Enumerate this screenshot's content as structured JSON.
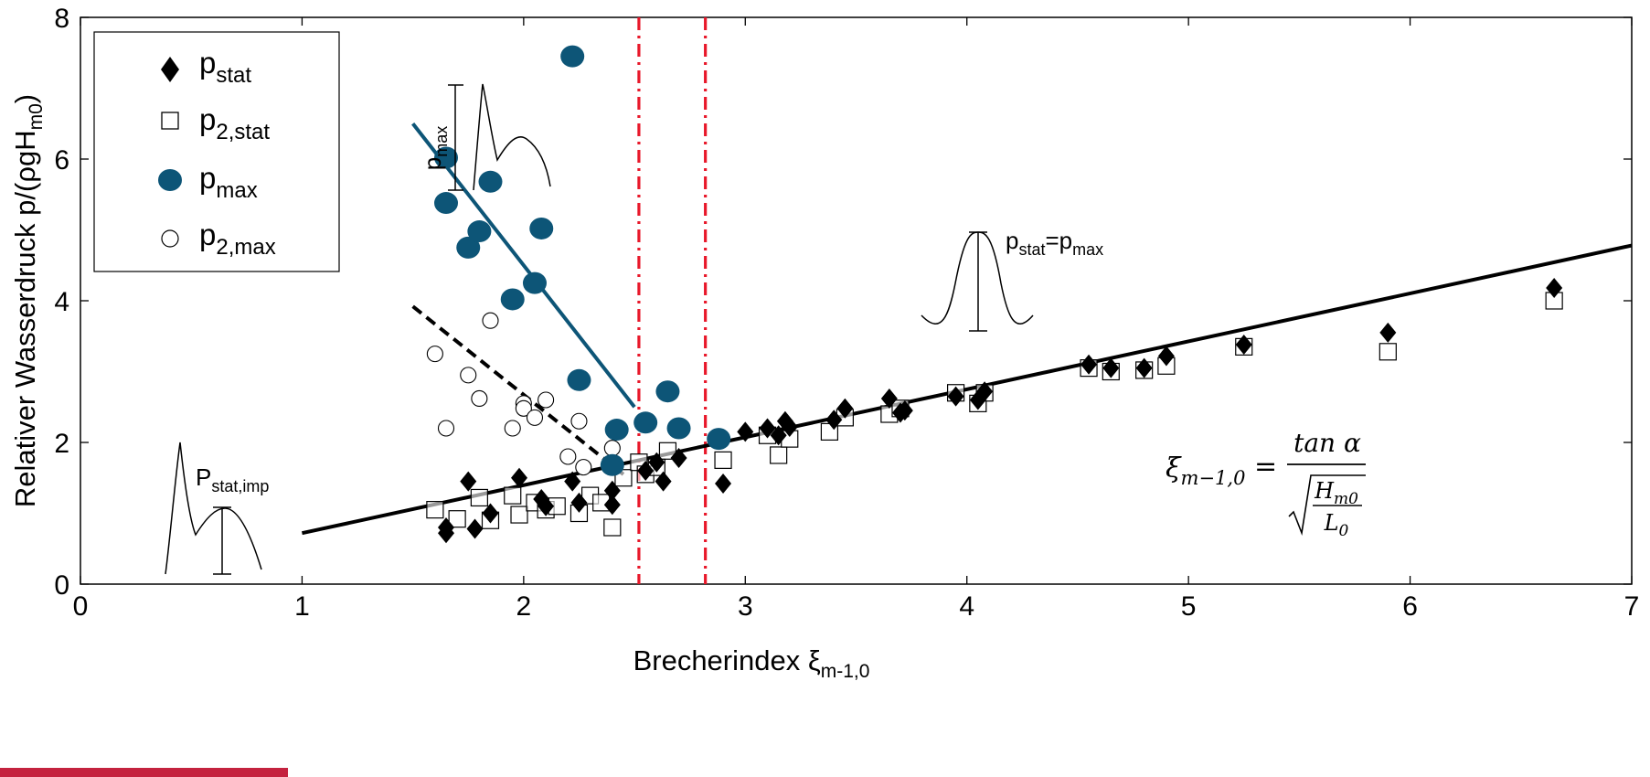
{
  "colors": {
    "accent_blue": "#0d5577",
    "red_dashed": "#e8182a",
    "black": "#000000",
    "logo_red": "#c4223f"
  },
  "chart_data": {
    "type": "scatter",
    "xlabel": "Brecherindex ξ",
    "xlabel_sub": "m-1,0",
    "ylabel": "Relativer Wasserdruck p/(ρgH",
    "ylabel_sub": "m0",
    "ylabel_end": ")",
    "xlim": [
      0,
      7
    ],
    "ylim": [
      0,
      8
    ],
    "xticks": [
      0,
      1,
      2,
      3,
      4,
      5,
      6,
      7
    ],
    "yticks": [
      0,
      2,
      4,
      6,
      8
    ],
    "legend_position": "top-left",
    "legend": [
      {
        "base": "p",
        "sub": "stat",
        "marker": "diamond-filled"
      },
      {
        "base": "p",
        "sub": "2,stat",
        "marker": "square-open"
      },
      {
        "base": "p",
        "sub": "max",
        "marker": "circle-filled"
      },
      {
        "base": "p",
        "sub": "2,max",
        "marker": "circle-open"
      }
    ],
    "series": [
      {
        "key": "p_stat",
        "marker": "diamond-filled",
        "points": [
          [
            1.65,
            0.72
          ],
          [
            1.65,
            0.8
          ],
          [
            1.75,
            1.45
          ],
          [
            1.78,
            0.78
          ],
          [
            1.85,
            1.0
          ],
          [
            1.98,
            1.5
          ],
          [
            2.08,
            1.2
          ],
          [
            2.1,
            1.1
          ],
          [
            2.22,
            1.45
          ],
          [
            2.25,
            1.15
          ],
          [
            2.4,
            1.32
          ],
          [
            2.4,
            1.12
          ],
          [
            2.55,
            1.6
          ],
          [
            2.6,
            1.72
          ],
          [
            2.63,
            1.45
          ],
          [
            2.7,
            1.78
          ],
          [
            2.9,
            1.42
          ],
          [
            3.0,
            2.15
          ],
          [
            3.1,
            2.2
          ],
          [
            3.15,
            2.1
          ],
          [
            3.18,
            2.3
          ],
          [
            3.2,
            2.22
          ],
          [
            3.4,
            2.32
          ],
          [
            3.45,
            2.48
          ],
          [
            3.65,
            2.62
          ],
          [
            3.7,
            2.42
          ],
          [
            3.72,
            2.45
          ],
          [
            3.95,
            2.65
          ],
          [
            4.05,
            2.6
          ],
          [
            4.08,
            2.72
          ],
          [
            4.55,
            3.1
          ],
          [
            4.65,
            3.05
          ],
          [
            4.8,
            3.05
          ],
          [
            4.9,
            3.22
          ],
          [
            5.25,
            3.38
          ],
          [
            5.9,
            3.55
          ],
          [
            6.65,
            4.18
          ]
        ]
      },
      {
        "key": "p_2stat",
        "marker": "square-open",
        "points": [
          [
            1.6,
            1.05
          ],
          [
            1.7,
            0.92
          ],
          [
            1.8,
            1.22
          ],
          [
            1.85,
            0.9
          ],
          [
            1.95,
            1.25
          ],
          [
            1.98,
            0.98
          ],
          [
            2.05,
            1.15
          ],
          [
            2.1,
            1.05
          ],
          [
            2.15,
            1.1
          ],
          [
            2.25,
            1.0
          ],
          [
            2.3,
            1.25
          ],
          [
            2.35,
            1.15
          ],
          [
            2.4,
            0.8
          ],
          [
            2.45,
            1.5
          ],
          [
            2.52,
            1.72
          ],
          [
            2.55,
            1.55
          ],
          [
            2.6,
            1.65
          ],
          [
            2.65,
            1.88
          ],
          [
            2.9,
            1.75
          ],
          [
            3.1,
            2.1
          ],
          [
            3.15,
            1.82
          ],
          [
            3.2,
            2.05
          ],
          [
            3.38,
            2.15
          ],
          [
            3.45,
            2.35
          ],
          [
            3.65,
            2.4
          ],
          [
            3.7,
            2.48
          ],
          [
            3.95,
            2.7
          ],
          [
            4.05,
            2.55
          ],
          [
            4.08,
            2.7
          ],
          [
            4.55,
            3.05
          ],
          [
            4.65,
            3.0
          ],
          [
            4.8,
            3.02
          ],
          [
            4.9,
            3.08
          ],
          [
            5.25,
            3.35
          ],
          [
            5.9,
            3.28
          ],
          [
            6.65,
            4.0
          ]
        ]
      },
      {
        "key": "p_max",
        "marker": "circle-filled",
        "points": [
          [
            1.65,
            6.02
          ],
          [
            1.65,
            5.38
          ],
          [
            1.75,
            4.75
          ],
          [
            1.8,
            4.98
          ],
          [
            1.85,
            5.68
          ],
          [
            1.95,
            4.02
          ],
          [
            2.05,
            4.25
          ],
          [
            2.08,
            5.02
          ],
          [
            2.22,
            7.45
          ],
          [
            2.25,
            2.88
          ],
          [
            2.42,
            2.18
          ],
          [
            2.4,
            1.68
          ],
          [
            2.55,
            2.28
          ],
          [
            2.65,
            2.72
          ],
          [
            2.7,
            2.2
          ],
          [
            2.88,
            2.05
          ]
        ]
      },
      {
        "key": "p_2max",
        "marker": "circle-open",
        "points": [
          [
            1.6,
            3.25
          ],
          [
            1.65,
            2.2
          ],
          [
            1.75,
            2.95
          ],
          [
            1.8,
            2.62
          ],
          [
            1.85,
            3.72
          ],
          [
            1.95,
            2.2
          ],
          [
            2.0,
            2.55
          ],
          [
            2.0,
            2.48
          ],
          [
            2.05,
            2.35
          ],
          [
            2.1,
            2.6
          ],
          [
            2.2,
            1.8
          ],
          [
            2.25,
            2.3
          ],
          [
            2.27,
            1.65
          ],
          [
            2.4,
            1.92
          ]
        ]
      }
    ],
    "fit_lines": [
      {
        "key": "p_stat_fit",
        "style": "solid-black",
        "from": [
          1.0,
          0.72
        ],
        "to": [
          7.0,
          4.78
        ]
      },
      {
        "key": "p_max_fit",
        "style": "solid-blue",
        "from": [
          1.5,
          6.5
        ],
        "to": [
          2.5,
          2.5
        ]
      },
      {
        "key": "p_2max_fit",
        "style": "dashed-black",
        "from": [
          1.5,
          3.92
        ],
        "to": [
          2.45,
          1.55
        ]
      }
    ],
    "vertical_lines": [
      {
        "x": 2.52,
        "style": "dash-dot-red"
      },
      {
        "x": 2.82,
        "style": "dash-dot-red"
      }
    ],
    "annotations": [
      {
        "key": "pmax_label",
        "base": "p",
        "sub": "max"
      },
      {
        "key": "pstat_eq_pmax",
        "base1": "p",
        "sub1": "stat",
        "eq": "=",
        "base2": "p",
        "sub2": "max"
      },
      {
        "key": "pstat_imp",
        "base": "P",
        "sub": "stat,imp"
      }
    ],
    "formula": {
      "lhs_base": "ξ",
      "lhs_sub": "m−1,0",
      "equals": "=",
      "numerator": "tan α",
      "inner_num_base": "H",
      "inner_num_sub": "m0",
      "inner_den_base": "L",
      "inner_den_sub": "0"
    }
  }
}
